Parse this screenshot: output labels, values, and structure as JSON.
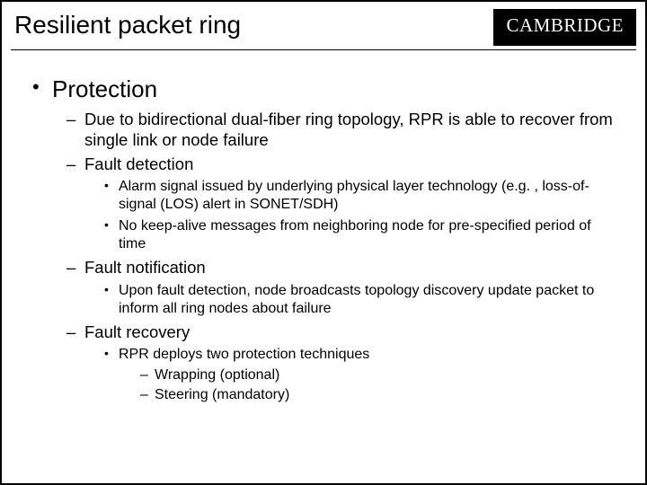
{
  "header": {
    "title": "Resilient packet ring",
    "logo": "CAMBRIDGE"
  },
  "colors": {
    "background": "#ffffff",
    "text": "#000000",
    "logo_bg": "#000000",
    "logo_fg": "#ffffff",
    "border": "#000000"
  },
  "typography": {
    "title_font": "Comic Sans MS",
    "title_size_pt": 28,
    "body_font": "Comic Sans MS",
    "lvl1_size_pt": 26,
    "lvl2_size_pt": 18.5,
    "lvl3_size_pt": 16,
    "lvl4_size_pt": 16,
    "logo_font": "Georgia serif small-caps",
    "logo_size_pt": 21
  },
  "content": {
    "lvl1": [
      {
        "text": "Protection",
        "children": [
          {
            "text": "Due to bidirectional dual-fiber ring topology, RPR is able to recover from single link or node failure"
          },
          {
            "text": "Fault detection",
            "children": [
              {
                "text": "Alarm signal issued by underlying physical layer technology (e.g. , loss-of-signal (LOS) alert in SONET/SDH)"
              },
              {
                "text": "No keep-alive messages from neighboring node for pre-specified period of time"
              }
            ]
          },
          {
            "text": "Fault notification",
            "children": [
              {
                "text": "Upon fault detection, node broadcasts topology discovery update packet to inform all ring nodes about failure"
              }
            ]
          },
          {
            "text": "Fault recovery",
            "children": [
              {
                "text": "RPR deploys two protection techniques",
                "children": [
                  {
                    "text": "Wrapping (optional)"
                  },
                  {
                    "text": "Steering (mandatory)"
                  }
                ]
              }
            ]
          }
        ]
      }
    ]
  }
}
